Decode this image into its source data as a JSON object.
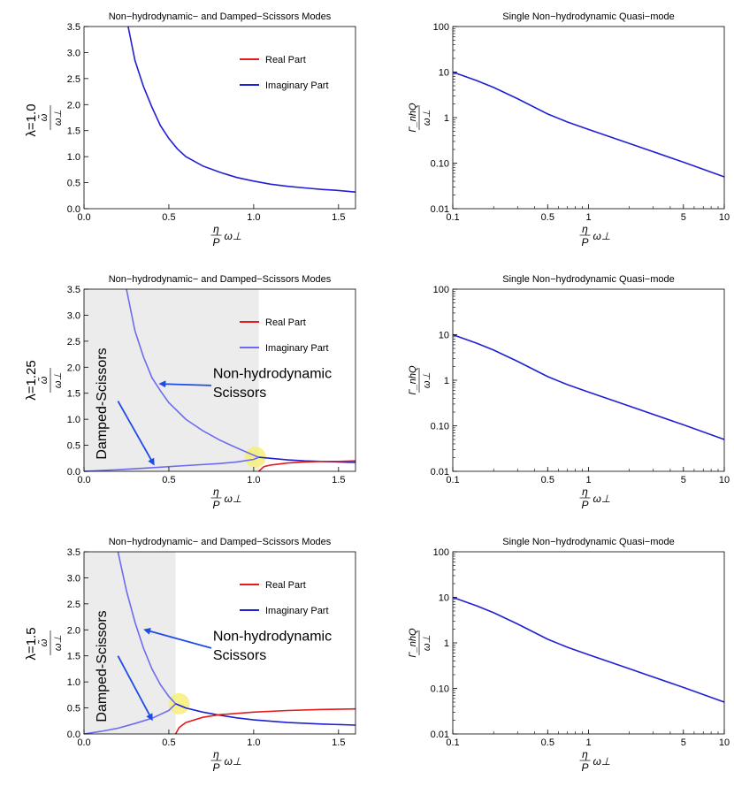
{
  "layout_rows": [
    {
      "row_label": "λ=1.0"
    },
    {
      "row_label": "λ=1.25"
    },
    {
      "row_label": "λ=1.5"
    }
  ],
  "colors": {
    "real": "#e41a1c",
    "imag": "#1f1fd6",
    "imag_light": "#6b6bf0",
    "shade": "#ececec",
    "marker": "#f7f07a",
    "arrow": "#1f4be8"
  },
  "chart_data": [
    {
      "id": "modes_l100",
      "type": "line",
      "title": "Non−hydrodynamic− and Damped−Scissors Modes",
      "xlabel": "η/P ω⊥",
      "ylabel": "ω̃/ω⊥",
      "xlim": [
        0,
        1.6
      ],
      "ylim": [
        0,
        3.5
      ],
      "xticks": [
        0.0,
        0.5,
        1.0,
        1.5
      ],
      "xtick_labels": [
        "0.0",
        "0.5",
        "1.0",
        "1.5"
      ],
      "yticks": [
        0,
        0.5,
        1.0,
        1.5,
        2.0,
        2.5,
        3.0,
        3.5
      ],
      "ytick_labels": [
        "0.0",
        "0.5",
        "1.0",
        "1.5",
        "2.0",
        "2.5",
        "3.0",
        "3.5"
      ],
      "legend": [
        {
          "label": "Real Part",
          "color": "real"
        },
        {
          "label": "Imaginary Part",
          "color": "imag"
        }
      ],
      "legend_position": "top-right",
      "series": [
        {
          "name": "Imaginary Part",
          "color": "imag",
          "x": [
            0.26,
            0.3,
            0.35,
            0.4,
            0.45,
            0.5,
            0.55,
            0.6,
            0.7,
            0.8,
            0.9,
            1.0,
            1.1,
            1.2,
            1.3,
            1.4,
            1.5,
            1.6
          ],
          "y": [
            3.5,
            2.85,
            2.35,
            1.95,
            1.6,
            1.35,
            1.15,
            1.0,
            0.82,
            0.7,
            0.6,
            0.53,
            0.47,
            0.43,
            0.4,
            0.37,
            0.35,
            0.32
          ]
        }
      ]
    },
    {
      "id": "quasi_l100",
      "type": "line",
      "title": "Single Non−hydrodynamic Quasi−mode",
      "xlabel": "η/P ω⊥",
      "ylabel": "Γ_nhQ/ω⊥",
      "xscale": "log",
      "yscale": "log",
      "xlim": [
        0.1,
        10
      ],
      "ylim": [
        0.01,
        100
      ],
      "xticks": [
        0.1,
        0.5,
        1,
        5,
        10
      ],
      "xtick_labels": [
        "0.1",
        "0.5",
        "1",
        "5",
        "10"
      ],
      "yticks": [
        0.01,
        0.1,
        1,
        10,
        100
      ],
      "ytick_labels": [
        "0.01",
        "0.10",
        "1",
        "10",
        "100"
      ],
      "series": [
        {
          "name": "Γ_nhQ",
          "color": "imag",
          "x": [
            0.1,
            0.15,
            0.2,
            0.3,
            0.5,
            0.7,
            1,
            2,
            5,
            10
          ],
          "y": [
            10,
            6.5,
            4.6,
            2.6,
            1.2,
            0.8,
            0.55,
            0.27,
            0.105,
            0.05
          ]
        }
      ]
    },
    {
      "id": "modes_l125",
      "type": "line",
      "title": "Non−hydrodynamic− and Damped−Scissors Modes",
      "xlabel": "η/P ω⊥",
      "ylabel": "ω̃/ω⊥",
      "xlim": [
        0,
        1.6
      ],
      "ylim": [
        0,
        3.5
      ],
      "xticks": [
        0.0,
        0.5,
        1.0,
        1.5
      ],
      "xtick_labels": [
        "0.0",
        "0.5",
        "1.0",
        "1.5"
      ],
      "yticks": [
        0,
        0.5,
        1.0,
        1.5,
        2.0,
        2.5,
        3.0,
        3.5
      ],
      "ytick_labels": [
        "0.0",
        "0.5",
        "1.0",
        "1.5",
        "2.0",
        "2.5",
        "3.0",
        "3.5"
      ],
      "legend": [
        {
          "label": "Real Part",
          "color": "real"
        },
        {
          "label": "Imaginary Part",
          "color": "imag_light"
        }
      ],
      "legend_position": "top-right",
      "shade": [
        0,
        1.03
      ],
      "marker": [
        1.01,
        0.27
      ],
      "annotations": [
        {
          "text": "Non-hydrodynamic",
          "x": 0.76,
          "y": 1.79
        },
        {
          "text": "Scissors",
          "x": 0.76,
          "y": 1.43
        }
      ],
      "rotated_label": {
        "text": "Damped-Scissors",
        "x": 0.13,
        "y": 1.3
      },
      "arrows": [
        {
          "from": [
            0.75,
            1.65
          ],
          "to": [
            0.45,
            1.68
          ]
        },
        {
          "from": [
            0.2,
            1.35
          ],
          "to": [
            0.41,
            0.14
          ]
        }
      ],
      "series": [
        {
          "name": "Imaginary Part (upper)",
          "color": "imag_light",
          "x": [
            0.25,
            0.3,
            0.35,
            0.4,
            0.45,
            0.5,
            0.6,
            0.7,
            0.8,
            0.9,
            1.0,
            1.03
          ],
          "y": [
            3.5,
            2.7,
            2.2,
            1.8,
            1.55,
            1.32,
            1.0,
            0.78,
            0.6,
            0.45,
            0.31,
            0.27
          ]
        },
        {
          "name": "Imaginary Part (lower)",
          "color": "imag_light",
          "x": [
            0,
            0.2,
            0.4,
            0.6,
            0.8,
            0.9,
            1.0,
            1.03
          ],
          "y": [
            0,
            0.03,
            0.07,
            0.11,
            0.15,
            0.18,
            0.23,
            0.27
          ]
        },
        {
          "name": "Imaginary Part (merged)",
          "color": "imag",
          "x": [
            1.03,
            1.1,
            1.2,
            1.3,
            1.4,
            1.5,
            1.6
          ],
          "y": [
            0.27,
            0.25,
            0.22,
            0.2,
            0.19,
            0.18,
            0.17
          ]
        },
        {
          "name": "Real Part",
          "color": "real",
          "x": [
            1.03,
            1.06,
            1.1,
            1.2,
            1.3,
            1.4,
            1.5,
            1.6
          ],
          "y": [
            0,
            0.09,
            0.12,
            0.16,
            0.18,
            0.19,
            0.19,
            0.2
          ]
        }
      ]
    },
    {
      "id": "quasi_l125",
      "type": "line",
      "title": "Single Non−hydrodynamic Quasi−mode",
      "xlabel": "η/P ω⊥",
      "ylabel": "Γ_nhQ/ω⊥",
      "xscale": "log",
      "yscale": "log",
      "xlim": [
        0.1,
        10
      ],
      "ylim": [
        0.01,
        100
      ],
      "xticks": [
        0.1,
        0.5,
        1,
        5,
        10
      ],
      "xtick_labels": [
        "0.1",
        "0.5",
        "1",
        "5",
        "10"
      ],
      "yticks": [
        0.01,
        0.1,
        1,
        10,
        100
      ],
      "ytick_labels": [
        "0.01",
        "0.10",
        "1",
        "10",
        "100"
      ],
      "series": [
        {
          "name": "Γ_nhQ",
          "color": "imag",
          "x": [
            0.1,
            0.15,
            0.2,
            0.3,
            0.5,
            0.7,
            1,
            2,
            5,
            10
          ],
          "y": [
            10,
            6.5,
            4.6,
            2.6,
            1.2,
            0.8,
            0.55,
            0.27,
            0.105,
            0.05
          ]
        }
      ]
    },
    {
      "id": "modes_l150",
      "type": "line",
      "title": "Non−hydrodynamic− and Damped−Scissors Modes",
      "xlabel": "η/P ω⊥",
      "ylabel": "ω̃/ω⊥",
      "xlim": [
        0,
        1.6
      ],
      "ylim": [
        0,
        3.5
      ],
      "xticks": [
        0.0,
        0.5,
        1.0,
        1.5
      ],
      "xtick_labels": [
        "0.0",
        "0.5",
        "1.0",
        "1.5"
      ],
      "yticks": [
        0,
        0.5,
        1.0,
        1.5,
        2.0,
        2.5,
        3.0,
        3.5
      ],
      "ytick_labels": [
        "0.0",
        "0.5",
        "1.0",
        "1.5",
        "2.0",
        "2.5",
        "3.0",
        "3.5"
      ],
      "legend": [
        {
          "label": "Real Part",
          "color": "real"
        },
        {
          "label": "Imaginary Part",
          "color": "imag"
        }
      ],
      "legend_position": "top-right",
      "shade": [
        0,
        0.54
      ],
      "marker": [
        0.56,
        0.58
      ],
      "annotations": [
        {
          "text": "Non-hydrodynamic",
          "x": 0.76,
          "y": 1.79
        },
        {
          "text": "Scissors",
          "x": 0.76,
          "y": 1.43
        }
      ],
      "rotated_label": {
        "text": "Damped-Scissors",
        "x": 0.13,
        "y": 1.3
      },
      "arrows": [
        {
          "from": [
            0.75,
            1.65
          ],
          "to": [
            0.36,
            2.0
          ]
        },
        {
          "from": [
            0.2,
            1.5
          ],
          "to": [
            0.4,
            0.28
          ]
        }
      ],
      "series": [
        {
          "name": "Imaginary Part (upper)",
          "color": "imag_light",
          "x": [
            0.2,
            0.25,
            0.3,
            0.35,
            0.4,
            0.45,
            0.5,
            0.54
          ],
          "y": [
            3.5,
            2.75,
            2.15,
            1.65,
            1.25,
            0.95,
            0.72,
            0.58
          ]
        },
        {
          "name": "Imaginary Part (lower)",
          "color": "imag_light",
          "x": [
            0,
            0.1,
            0.2,
            0.3,
            0.4,
            0.5,
            0.54
          ],
          "y": [
            0,
            0.05,
            0.11,
            0.2,
            0.3,
            0.45,
            0.58
          ]
        },
        {
          "name": "Imaginary Part (merged)",
          "color": "imag",
          "x": [
            0.54,
            0.6,
            0.7,
            0.8,
            0.9,
            1.0,
            1.2,
            1.4,
            1.6
          ],
          "y": [
            0.58,
            0.5,
            0.42,
            0.36,
            0.31,
            0.27,
            0.22,
            0.19,
            0.17
          ]
        },
        {
          "name": "Real Part",
          "color": "real",
          "x": [
            0.54,
            0.56,
            0.6,
            0.7,
            0.8,
            1.0,
            1.2,
            1.4,
            1.6
          ],
          "y": [
            0,
            0.12,
            0.22,
            0.32,
            0.37,
            0.42,
            0.45,
            0.47,
            0.48
          ]
        }
      ]
    },
    {
      "id": "quasi_l150",
      "type": "line",
      "title": "Single Non−hydrodynamic Quasi−mode",
      "xlabel": "η/P ω⊥",
      "ylabel": "Γ_nhQ/ω⊥",
      "xscale": "log",
      "yscale": "log",
      "xlim": [
        0.1,
        10
      ],
      "ylim": [
        0.01,
        100
      ],
      "xticks": [
        0.1,
        0.5,
        1,
        5,
        10
      ],
      "xtick_labels": [
        "0.1",
        "0.5",
        "1",
        "5",
        "10"
      ],
      "yticks": [
        0.01,
        0.1,
        1,
        10,
        100
      ],
      "ytick_labels": [
        "0.01",
        "0.10",
        "1",
        "10",
        "100"
      ],
      "series": [
        {
          "name": "Γ_nhQ",
          "color": "imag",
          "x": [
            0.1,
            0.15,
            0.2,
            0.3,
            0.5,
            0.7,
            1,
            2,
            5,
            10
          ],
          "y": [
            10,
            6.5,
            4.6,
            2.6,
            1.2,
            0.8,
            0.55,
            0.27,
            0.105,
            0.05
          ]
        }
      ]
    }
  ]
}
